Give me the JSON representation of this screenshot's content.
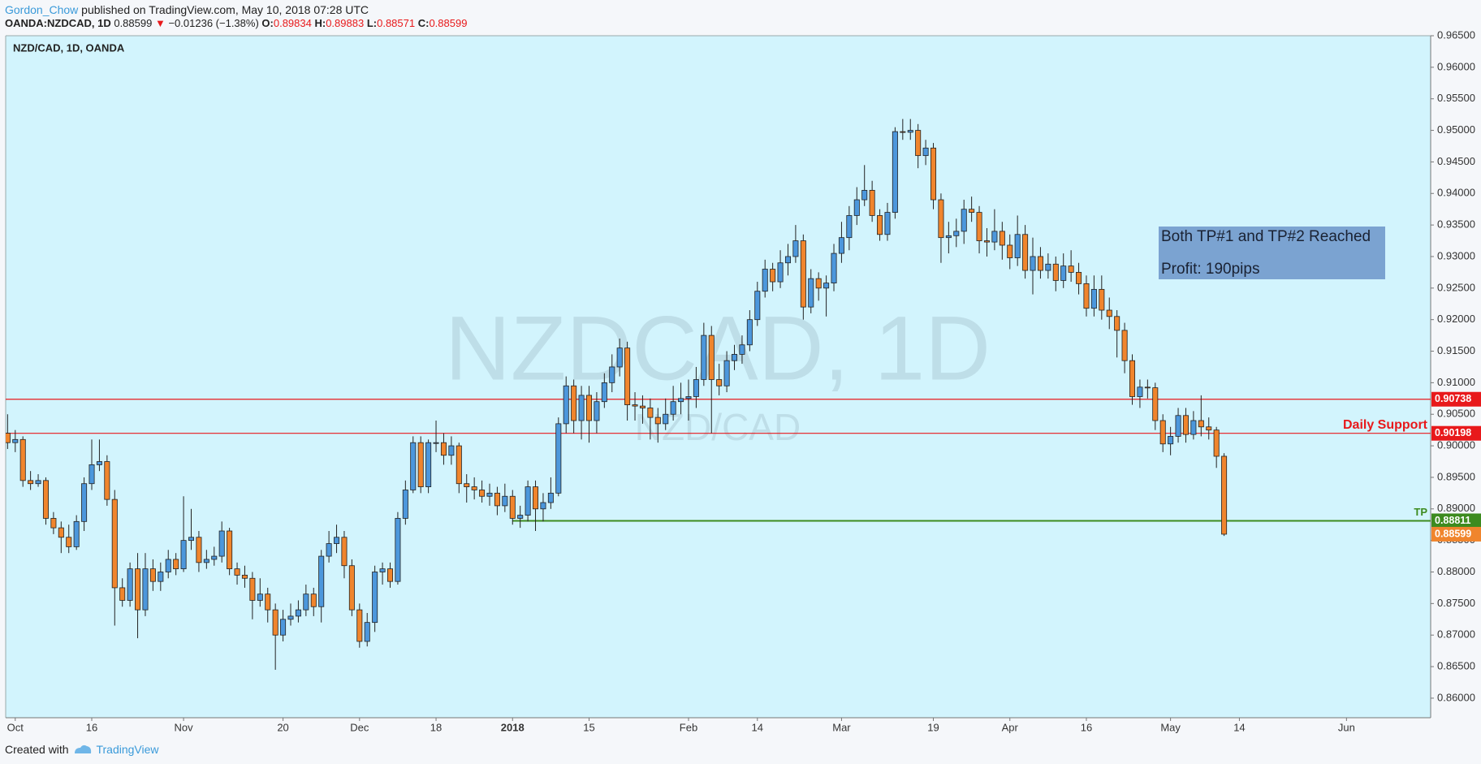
{
  "header": {
    "author": "Gordon_Chow",
    "published": "published on TradingView.com, May 10, 2018 07:28 UTC",
    "symbol": "OANDA:NZDCAD, 1D",
    "price": "0.88599",
    "arrow": "▼",
    "change": "−0.01236 (−1.38%)",
    "ohlc": [
      {
        "label": "O:",
        "value": "0.89834"
      },
      {
        "label": "H:",
        "value": "0.89883"
      },
      {
        "label": "L:",
        "value": "0.88571"
      },
      {
        "label": "C:",
        "value": "0.88599"
      }
    ]
  },
  "footer": {
    "created": "Created with",
    "brand": "TradingView"
  },
  "chart_data": {
    "type": "candlestick",
    "title": "NZD/CAD, 1D, OANDA",
    "watermark": "NZDCAD, 1D",
    "watermark_sub": "NZD/CAD",
    "up_color": "#4c97dc",
    "down_color": "#f0852d",
    "xlim": [
      -0.25,
      186
    ],
    "ylim": [
      0.8569,
      0.965
    ],
    "xticks": [
      {
        "value": 1,
        "label": "Oct"
      },
      {
        "value": 11,
        "label": "16"
      },
      {
        "value": 23,
        "label": "Nov"
      },
      {
        "value": 36,
        "label": "20"
      },
      {
        "value": 46,
        "label": "Dec"
      },
      {
        "value": 56,
        "label": "18"
      },
      {
        "value": 66,
        "label": "2018"
      },
      {
        "value": 76,
        "label": "15"
      },
      {
        "value": 89,
        "label": "Feb"
      },
      {
        "value": 98,
        "label": "14"
      },
      {
        "value": 109,
        "label": "Mar"
      },
      {
        "value": 121,
        "label": "19"
      },
      {
        "value": 131,
        "label": "Apr"
      },
      {
        "value": 141,
        "label": "16"
      },
      {
        "value": 152,
        "label": "May"
      },
      {
        "value": 161,
        "label": "14"
      },
      {
        "value": 175,
        "label": "Jun"
      }
    ],
    "yticks": [
      {
        "value": 0.86,
        "label": "0.86000"
      },
      {
        "value": 0.865,
        "label": "0.86500"
      },
      {
        "value": 0.87,
        "label": "0.87000"
      },
      {
        "value": 0.875,
        "label": "0.87500"
      },
      {
        "value": 0.88,
        "label": "0.88000"
      },
      {
        "value": 0.885,
        "label": "0.88500"
      },
      {
        "value": 0.89,
        "label": "0.89000"
      },
      {
        "value": 0.895,
        "label": "0.89500"
      },
      {
        "value": 0.9,
        "label": "0.90000"
      },
      {
        "value": 0.905,
        "label": "0.90500"
      },
      {
        "value": 0.91,
        "label": "0.91000"
      },
      {
        "value": 0.915,
        "label": "0.91500"
      },
      {
        "value": 0.92,
        "label": "0.92000"
      },
      {
        "value": 0.925,
        "label": "0.92500"
      },
      {
        "value": 0.93,
        "label": "0.93000"
      },
      {
        "value": 0.935,
        "label": "0.93500"
      },
      {
        "value": 0.94,
        "label": "0.94000"
      },
      {
        "value": 0.945,
        "label": "0.94500"
      },
      {
        "value": 0.95,
        "label": "0.95000"
      },
      {
        "value": 0.955,
        "label": "0.95500"
      },
      {
        "value": 0.96,
        "label": "0.96000"
      },
      {
        "value": 0.965,
        "label": "0.96500"
      }
    ],
    "hlines": [
      {
        "value": 0.90738,
        "label": "0.90738",
        "color": "#e8191b"
      },
      {
        "value": 0.90198,
        "label": "0.90198",
        "color": "#e8191b",
        "text": "Daily Support"
      },
      {
        "value": 0.88811,
        "label": "0.88811",
        "color": "#3d8b1f",
        "text": "TP",
        "x_start": 66
      }
    ],
    "last_price_label": "0.88599",
    "annotation": [
      "Both TP#1 and TP#2 Reached",
      "Profit: 190pips"
    ],
    "candles": [
      [
        0.902,
        0.905,
        0.8995,
        0.9005
      ],
      [
        0.9005,
        0.9025,
        0.899,
        0.901
      ],
      [
        0.901,
        0.9015,
        0.8935,
        0.8945
      ],
      [
        0.8945,
        0.896,
        0.893,
        0.894
      ],
      [
        0.894,
        0.8955,
        0.8935,
        0.8945
      ],
      [
        0.8945,
        0.895,
        0.8875,
        0.8885
      ],
      [
        0.8885,
        0.8895,
        0.886,
        0.887
      ],
      [
        0.887,
        0.888,
        0.883,
        0.8855
      ],
      [
        0.8855,
        0.8875,
        0.883,
        0.884
      ],
      [
        0.884,
        0.889,
        0.8835,
        0.888
      ],
      [
        0.888,
        0.895,
        0.8865,
        0.894
      ],
      [
        0.894,
        0.901,
        0.893,
        0.897
      ],
      [
        0.897,
        0.901,
        0.896,
        0.8975
      ],
      [
        0.8975,
        0.8985,
        0.8905,
        0.8915
      ],
      [
        0.8915,
        0.893,
        0.8715,
        0.8775
      ],
      [
        0.8775,
        0.879,
        0.8745,
        0.8755
      ],
      [
        0.8755,
        0.8815,
        0.8745,
        0.8805
      ],
      [
        0.8805,
        0.883,
        0.8695,
        0.874
      ],
      [
        0.874,
        0.883,
        0.873,
        0.8805
      ],
      [
        0.8805,
        0.882,
        0.877,
        0.8785
      ],
      [
        0.8785,
        0.8815,
        0.877,
        0.88
      ],
      [
        0.88,
        0.8835,
        0.879,
        0.882
      ],
      [
        0.882,
        0.883,
        0.8795,
        0.8805
      ],
      [
        0.8805,
        0.892,
        0.88,
        0.885
      ],
      [
        0.885,
        0.89,
        0.8835,
        0.8855
      ],
      [
        0.8855,
        0.8865,
        0.88,
        0.8815
      ],
      [
        0.8815,
        0.8835,
        0.8805,
        0.882
      ],
      [
        0.882,
        0.884,
        0.881,
        0.8825
      ],
      [
        0.8825,
        0.888,
        0.8815,
        0.8865
      ],
      [
        0.8865,
        0.887,
        0.8795,
        0.8805
      ],
      [
        0.8805,
        0.8815,
        0.878,
        0.8795
      ],
      [
        0.8795,
        0.881,
        0.8775,
        0.879
      ],
      [
        0.879,
        0.88,
        0.8725,
        0.8755
      ],
      [
        0.8755,
        0.879,
        0.8745,
        0.8765
      ],
      [
        0.8765,
        0.8775,
        0.872,
        0.874
      ],
      [
        0.874,
        0.875,
        0.8645,
        0.87
      ],
      [
        0.87,
        0.874,
        0.869,
        0.8725
      ],
      [
        0.8725,
        0.875,
        0.8715,
        0.873
      ],
      [
        0.873,
        0.8755,
        0.872,
        0.874
      ],
      [
        0.874,
        0.878,
        0.873,
        0.8765
      ],
      [
        0.8765,
        0.8775,
        0.873,
        0.8745
      ],
      [
        0.8745,
        0.8835,
        0.872,
        0.8825
      ],
      [
        0.8825,
        0.8865,
        0.8815,
        0.8845
      ],
      [
        0.8845,
        0.8875,
        0.883,
        0.8855
      ],
      [
        0.8855,
        0.8865,
        0.879,
        0.881
      ],
      [
        0.881,
        0.882,
        0.873,
        0.874
      ],
      [
        0.874,
        0.875,
        0.868,
        0.869
      ],
      [
        0.869,
        0.8735,
        0.8682,
        0.872
      ],
      [
        0.872,
        0.881,
        0.8705,
        0.88
      ],
      [
        0.88,
        0.8815,
        0.878,
        0.8805
      ],
      [
        0.8805,
        0.8815,
        0.8775,
        0.8785
      ],
      [
        0.8785,
        0.8895,
        0.878,
        0.8885
      ],
      [
        0.8885,
        0.8945,
        0.8875,
        0.893
      ],
      [
        0.893,
        0.9015,
        0.8925,
        0.9005
      ],
      [
        0.9005,
        0.9015,
        0.8925,
        0.8935
      ],
      [
        0.8935,
        0.901,
        0.8925,
        0.9005
      ],
      [
        0.9005,
        0.904,
        0.899,
        0.9005
      ],
      [
        0.9005,
        0.902,
        0.897,
        0.8985
      ],
      [
        0.8985,
        0.9015,
        0.897,
        0.9
      ],
      [
        0.9,
        0.9005,
        0.8925,
        0.894
      ],
      [
        0.894,
        0.8955,
        0.891,
        0.8935
      ],
      [
        0.8935,
        0.895,
        0.8915,
        0.893
      ],
      [
        0.893,
        0.8945,
        0.891,
        0.892
      ],
      [
        0.892,
        0.894,
        0.8905,
        0.8925
      ],
      [
        0.8925,
        0.8935,
        0.889,
        0.8905
      ],
      [
        0.8905,
        0.894,
        0.8895,
        0.892
      ],
      [
        0.892,
        0.893,
        0.8875,
        0.8885
      ],
      [
        0.8885,
        0.8905,
        0.887,
        0.889
      ],
      [
        0.889,
        0.8945,
        0.888,
        0.8935
      ],
      [
        0.8935,
        0.8945,
        0.8865,
        0.89
      ],
      [
        0.89,
        0.8925,
        0.888,
        0.891
      ],
      [
        0.891,
        0.895,
        0.89,
        0.8925
      ],
      [
        0.8925,
        0.9045,
        0.892,
        0.9035
      ],
      [
        0.9035,
        0.911,
        0.902,
        0.9095
      ],
      [
        0.9095,
        0.9105,
        0.902,
        0.904
      ],
      [
        0.904,
        0.9095,
        0.901,
        0.908
      ],
      [
        0.908,
        0.9095,
        0.9005,
        0.904
      ],
      [
        0.904,
        0.9085,
        0.902,
        0.907
      ],
      [
        0.907,
        0.9115,
        0.906,
        0.91
      ],
      [
        0.91,
        0.9145,
        0.9085,
        0.9125
      ],
      [
        0.9125,
        0.917,
        0.911,
        0.9155
      ],
      [
        0.9155,
        0.9165,
        0.904,
        0.9065
      ],
      [
        0.9065,
        0.9085,
        0.904,
        0.9063
      ],
      [
        0.9063,
        0.908,
        0.9035,
        0.906
      ],
      [
        0.906,
        0.9075,
        0.901,
        0.9045
      ],
      [
        0.9045,
        0.906,
        0.9005,
        0.9035
      ],
      [
        0.9035,
        0.9075,
        0.9025,
        0.905
      ],
      [
        0.905,
        0.9095,
        0.904,
        0.907
      ],
      [
        0.907,
        0.91,
        0.905,
        0.9075
      ],
      [
        0.9075,
        0.9105,
        0.904,
        0.9078
      ],
      [
        0.9078,
        0.9125,
        0.906,
        0.9105
      ],
      [
        0.9105,
        0.9195,
        0.9095,
        0.9175
      ],
      [
        0.9175,
        0.919,
        0.902,
        0.9105
      ],
      [
        0.9105,
        0.913,
        0.908,
        0.9095
      ],
      [
        0.9095,
        0.915,
        0.9085,
        0.9135
      ],
      [
        0.9135,
        0.916,
        0.912,
        0.9145
      ],
      [
        0.9145,
        0.9175,
        0.913,
        0.916
      ],
      [
        0.916,
        0.9215,
        0.915,
        0.92
      ],
      [
        0.92,
        0.926,
        0.919,
        0.9245
      ],
      [
        0.9245,
        0.9295,
        0.9235,
        0.928
      ],
      [
        0.928,
        0.929,
        0.9245,
        0.926
      ],
      [
        0.926,
        0.931,
        0.925,
        0.929
      ],
      [
        0.929,
        0.932,
        0.927,
        0.93
      ],
      [
        0.93,
        0.935,
        0.929,
        0.9325
      ],
      [
        0.9325,
        0.9335,
        0.92,
        0.922
      ],
      [
        0.922,
        0.928,
        0.921,
        0.9265
      ],
      [
        0.9265,
        0.9275,
        0.923,
        0.925
      ],
      [
        0.925,
        0.927,
        0.9205,
        0.9258
      ],
      [
        0.9258,
        0.932,
        0.9245,
        0.9305
      ],
      [
        0.9305,
        0.9355,
        0.929,
        0.933
      ],
      [
        0.933,
        0.938,
        0.931,
        0.9365
      ],
      [
        0.9365,
        0.941,
        0.935,
        0.939
      ],
      [
        0.939,
        0.9445,
        0.938,
        0.9405
      ],
      [
        0.9405,
        0.942,
        0.9355,
        0.9365
      ],
      [
        0.9365,
        0.9375,
        0.9325,
        0.9335
      ],
      [
        0.9335,
        0.9385,
        0.9325,
        0.937
      ],
      [
        0.937,
        0.9505,
        0.936,
        0.9498
      ],
      [
        0.9498,
        0.9518,
        0.9485,
        0.9497
      ],
      [
        0.9497,
        0.9518,
        0.9485,
        0.95
      ],
      [
        0.95,
        0.951,
        0.944,
        0.946
      ],
      [
        0.946,
        0.9485,
        0.9445,
        0.9472
      ],
      [
        0.9472,
        0.948,
        0.9375,
        0.939
      ],
      [
        0.939,
        0.94,
        0.929,
        0.933
      ],
      [
        0.933,
        0.9355,
        0.9305,
        0.9333
      ],
      [
        0.9333,
        0.936,
        0.9315,
        0.934
      ],
      [
        0.934,
        0.939,
        0.932,
        0.9375
      ],
      [
        0.9375,
        0.9395,
        0.9355,
        0.937
      ],
      [
        0.937,
        0.938,
        0.9305,
        0.9325
      ],
      [
        0.9325,
        0.9345,
        0.93,
        0.9323
      ],
      [
        0.9323,
        0.9375,
        0.931,
        0.934
      ],
      [
        0.934,
        0.9355,
        0.9295,
        0.9318
      ],
      [
        0.9318,
        0.9335,
        0.928,
        0.9298
      ],
      [
        0.9298,
        0.9365,
        0.9285,
        0.9335
      ],
      [
        0.9335,
        0.935,
        0.9265,
        0.9278
      ],
      [
        0.9278,
        0.933,
        0.924,
        0.93
      ],
      [
        0.93,
        0.9315,
        0.9265,
        0.9278
      ],
      [
        0.9278,
        0.9305,
        0.9265,
        0.9288
      ],
      [
        0.9288,
        0.93,
        0.9245,
        0.9262
      ],
      [
        0.9262,
        0.9305,
        0.925,
        0.9285
      ],
      [
        0.9285,
        0.931,
        0.926,
        0.9275
      ],
      [
        0.9275,
        0.929,
        0.924,
        0.9257
      ],
      [
        0.9257,
        0.927,
        0.9205,
        0.9218
      ],
      [
        0.9218,
        0.927,
        0.9205,
        0.9248
      ],
      [
        0.9248,
        0.927,
        0.92,
        0.9215
      ],
      [
        0.9215,
        0.9235,
        0.9185,
        0.9205
      ],
      [
        0.9205,
        0.9215,
        0.914,
        0.9183
      ],
      [
        0.9183,
        0.9195,
        0.9115,
        0.9135
      ],
      [
        0.9135,
        0.9145,
        0.9065,
        0.9078
      ],
      [
        0.9078,
        0.9105,
        0.906,
        0.9093
      ],
      [
        0.9093,
        0.9105,
        0.9075,
        0.9092
      ],
      [
        0.9092,
        0.91,
        0.9025,
        0.904
      ],
      [
        0.904,
        0.905,
        0.899,
        0.9003
      ],
      [
        0.9003,
        0.903,
        0.8985,
        0.9015
      ],
      [
        0.9015,
        0.906,
        0.9005,
        0.9048
      ],
      [
        0.9048,
        0.906,
        0.9005,
        0.9018
      ],
      [
        0.9018,
        0.9055,
        0.901,
        0.904
      ],
      [
        0.904,
        0.908,
        0.9015,
        0.903
      ],
      [
        0.903,
        0.9045,
        0.901,
        0.9025
      ],
      [
        0.9025,
        0.903,
        0.8965,
        0.89834
      ],
      [
        0.89834,
        0.89883,
        0.88571,
        0.88599
      ]
    ]
  }
}
